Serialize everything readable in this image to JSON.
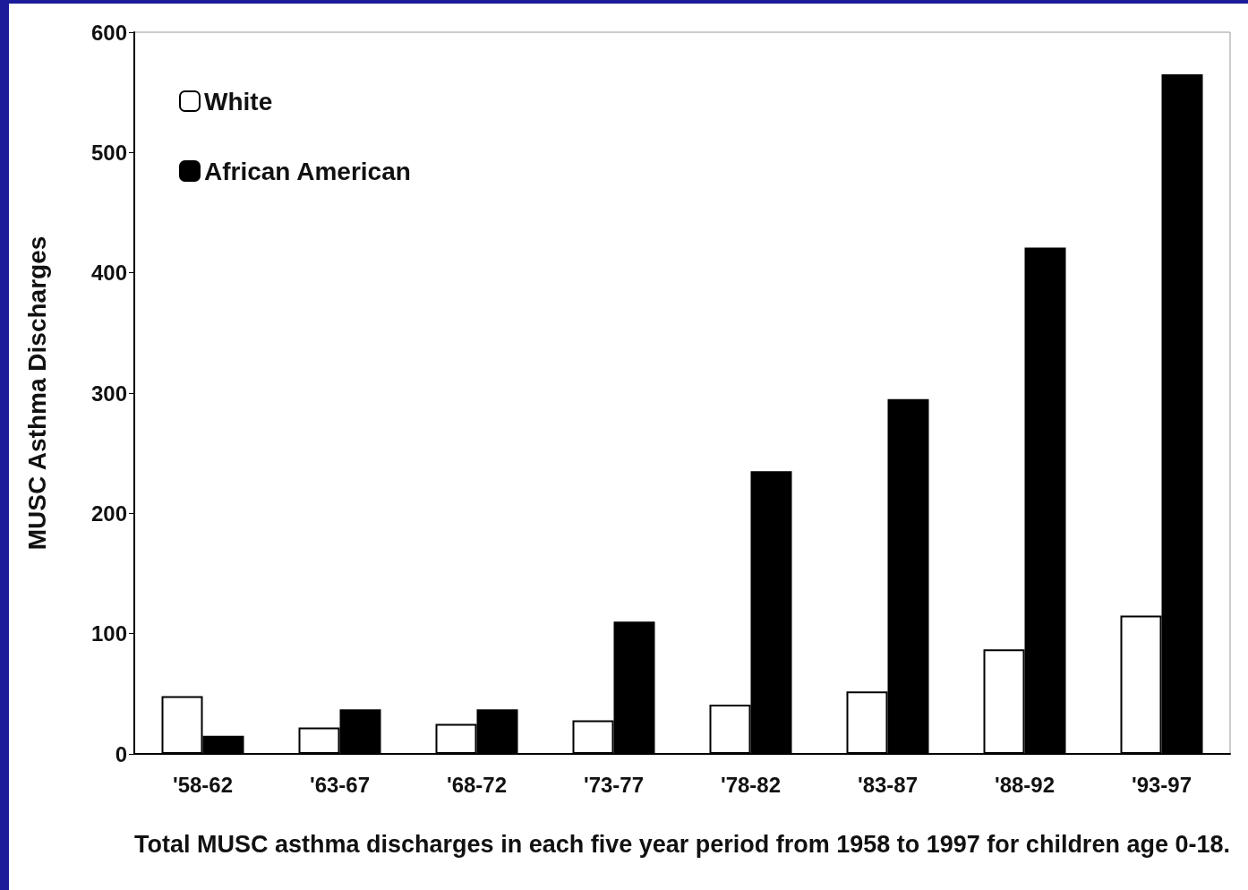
{
  "chart_data": {
    "type": "bar",
    "categories": [
      "'58-62",
      "'63-67",
      "'68-72",
      "'73-77",
      "'78-82",
      "'83-87",
      "'88-92",
      "'93-97"
    ],
    "series": [
      {
        "name": "White",
        "color": "#ffffff",
        "values": [
          48,
          22,
          25,
          28,
          41,
          52,
          87,
          115
        ]
      },
      {
        "name": "African American",
        "color": "#000000",
        "values": [
          15,
          37,
          37,
          110,
          235,
          295,
          421,
          565
        ]
      }
    ],
    "xlabel": "Total MUSC asthma discharges in each five year period from 1958 to 1997 for children age 0-18.",
    "ylabel": "MUSC Asthma Discharges",
    "ylim": [
      0,
      600
    ],
    "yticks": [
      0,
      100,
      200,
      300,
      400,
      500,
      600
    ],
    "grid": false,
    "legend": "top left"
  }
}
